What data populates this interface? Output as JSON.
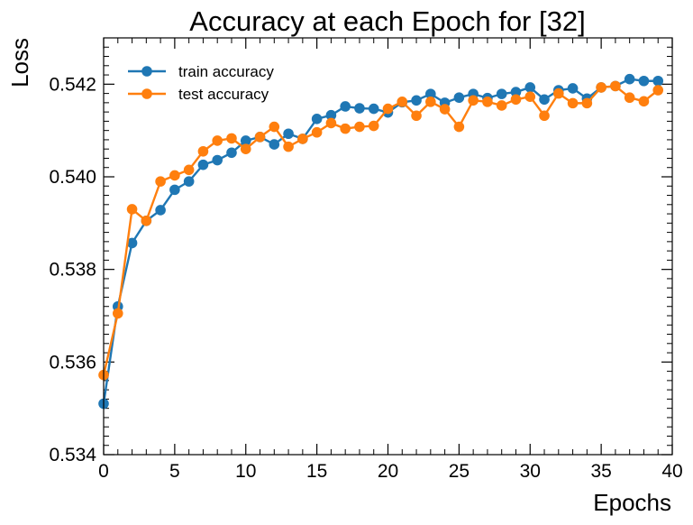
{
  "chart_data": {
    "type": "line",
    "title": "Accuracy at each Epoch for [32]",
    "xlabel": "Epochs",
    "ylabel": "Loss",
    "xlim": [
      0,
      40
    ],
    "ylim": [
      0.534,
      0.543
    ],
    "x_ticks": [
      0,
      5,
      10,
      15,
      20,
      25,
      30,
      35,
      40
    ],
    "x_tick_labels": [
      "0",
      "5",
      "10",
      "15",
      "20",
      "25",
      "30",
      "35",
      "40"
    ],
    "y_ticks": [
      0.534,
      0.536,
      0.538,
      0.54,
      0.542
    ],
    "y_tick_labels": [
      "0.534",
      "0.536",
      "0.538",
      "0.540",
      "0.542"
    ],
    "grid": false,
    "legend_position": "top-left",
    "x": [
      0,
      1,
      2,
      3,
      4,
      5,
      6,
      7,
      8,
      9,
      10,
      11,
      12,
      13,
      14,
      15,
      16,
      17,
      18,
      19,
      20,
      21,
      22,
      23,
      24,
      25,
      26,
      27,
      28,
      29,
      30,
      31,
      32,
      33,
      34,
      35,
      36,
      37,
      38,
      39
    ],
    "series": [
      {
        "name": "train accuracy",
        "color": "#1f77b4",
        "values": [
          0.5351,
          0.5372,
          0.53857,
          0.53905,
          0.53928,
          0.53972,
          0.5399,
          0.54026,
          0.54036,
          0.54052,
          0.54078,
          0.54086,
          0.5407,
          0.54093,
          0.54082,
          0.54125,
          0.54133,
          0.54152,
          0.54148,
          0.54147,
          0.54139,
          0.54161,
          0.54165,
          0.54179,
          0.5416,
          0.54171,
          0.54179,
          0.5417,
          0.54179,
          0.54183,
          0.54193,
          0.54167,
          0.54187,
          0.54191,
          0.54169,
          0.54193,
          0.54196,
          0.54211,
          0.54207,
          0.54207
        ]
      },
      {
        "name": "test accuracy",
        "color": "#ff7f0e",
        "values": [
          0.53572,
          0.53705,
          0.5393,
          0.53905,
          0.5399,
          0.54003,
          0.54015,
          0.54055,
          0.54078,
          0.54083,
          0.5406,
          0.54086,
          0.54108,
          0.54065,
          0.54082,
          0.54096,
          0.54116,
          0.54104,
          0.54108,
          0.5411,
          0.54147,
          0.54162,
          0.54132,
          0.54162,
          0.54146,
          0.54108,
          0.54165,
          0.54162,
          0.54154,
          0.54167,
          0.54173,
          0.54132,
          0.5418,
          0.54159,
          0.54159,
          0.54193,
          0.54196,
          0.54171,
          0.54163,
          0.54187
        ]
      }
    ]
  }
}
